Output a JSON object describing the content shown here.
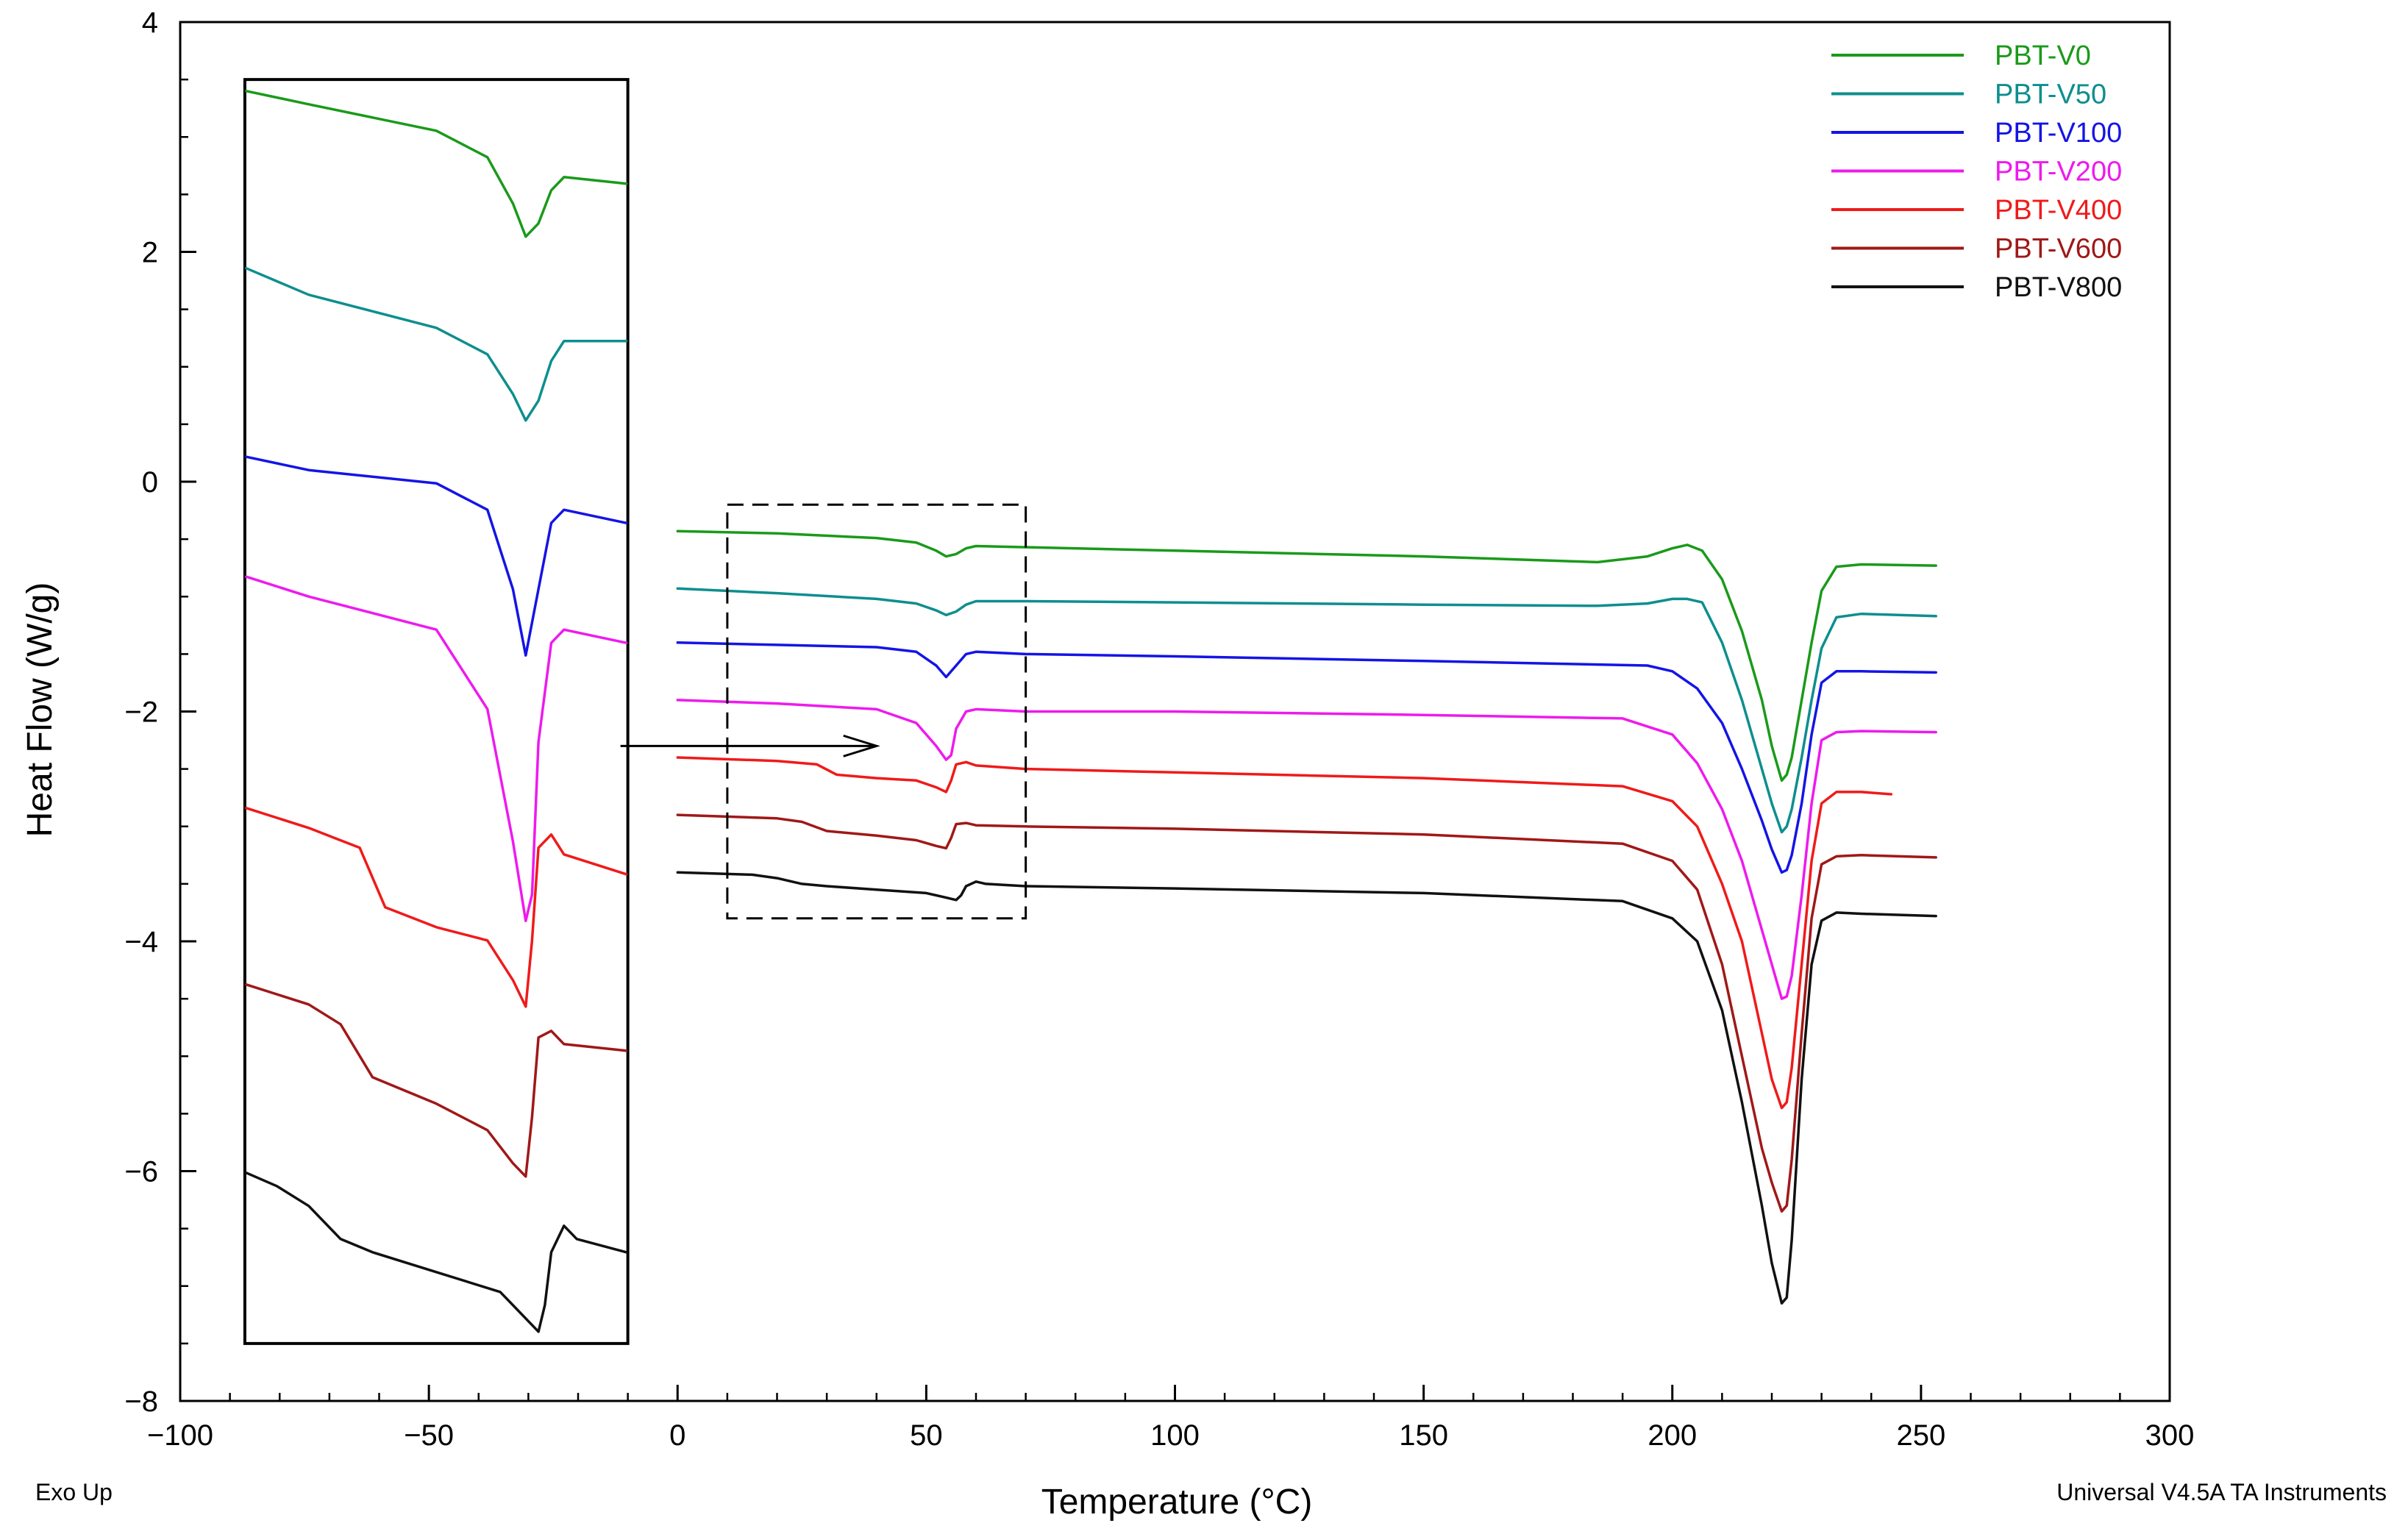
{
  "chart_data": {
    "type": "line",
    "title": "",
    "xlabel": "Temperature (°C)",
    "ylabel": "Heat Flow (W/g)",
    "xlim": [
      -100,
      300
    ],
    "ylim": [
      -8,
      4
    ],
    "x_ticks": [
      -100,
      -50,
      0,
      50,
      100,
      150,
      200,
      250,
      300
    ],
    "y_ticks": [
      -8,
      -6,
      -4,
      -2,
      0,
      2,
      4
    ],
    "legend_position": "top-right",
    "bottom_left_note": "Exo Up",
    "bottom_right_note": "Universal V4.5A TA Instruments",
    "series": [
      {
        "name": "PBT-V0",
        "color": "#1a9a1a",
        "x": [
          0,
          20,
          40,
          48,
          52,
          54,
          56,
          58,
          60,
          70,
          100,
          150,
          185,
          195,
          200,
          203,
          206,
          210,
          214,
          218,
          220,
          222,
          223,
          224,
          226,
          228,
          230,
          233,
          238,
          253
        ],
        "y": [
          -0.43,
          -0.45,
          -0.49,
          -0.53,
          -0.6,
          -0.65,
          -0.63,
          -0.58,
          -0.56,
          -0.57,
          -0.6,
          -0.65,
          -0.7,
          -0.65,
          -0.58,
          -0.55,
          -0.6,
          -0.85,
          -1.3,
          -1.9,
          -2.3,
          -2.6,
          -2.55,
          -2.4,
          -1.9,
          -1.4,
          -0.95,
          -0.74,
          -0.72,
          -0.73
        ]
      },
      {
        "name": "PBT-V50",
        "color": "#0e8e8e",
        "x": [
          0,
          20,
          40,
          48,
          52,
          54,
          56,
          58,
          60,
          70,
          100,
          150,
          185,
          195,
          200,
          203,
          206,
          210,
          214,
          218,
          220,
          222,
          223,
          224,
          226,
          228,
          230,
          233,
          238,
          253
        ],
        "y": [
          -0.93,
          -0.97,
          -1.02,
          -1.06,
          -1.12,
          -1.16,
          -1.13,
          -1.07,
          -1.04,
          -1.04,
          -1.05,
          -1.07,
          -1.08,
          -1.06,
          -1.02,
          -1.02,
          -1.05,
          -1.4,
          -1.9,
          -2.5,
          -2.8,
          -3.05,
          -3.0,
          -2.85,
          -2.4,
          -1.9,
          -1.45,
          -1.18,
          -1.15,
          -1.17
        ]
      },
      {
        "name": "PBT-V100",
        "color": "#1414e6",
        "x": [
          0,
          20,
          40,
          48,
          52,
          54,
          56,
          58,
          60,
          70,
          100,
          150,
          195,
          200,
          205,
          210,
          214,
          218,
          220,
          222,
          223,
          224,
          226,
          228,
          230,
          233,
          238,
          253
        ],
        "y": [
          -1.4,
          -1.42,
          -1.44,
          -1.48,
          -1.6,
          -1.7,
          -1.6,
          -1.5,
          -1.48,
          -1.5,
          -1.52,
          -1.56,
          -1.6,
          -1.65,
          -1.8,
          -2.1,
          -2.5,
          -2.95,
          -3.2,
          -3.4,
          -3.38,
          -3.25,
          -2.8,
          -2.2,
          -1.75,
          -1.65,
          -1.65,
          -1.66
        ]
      },
      {
        "name": "PBT-V200",
        "color": "#ee1aee",
        "x": [
          0,
          20,
          40,
          48,
          52,
          54,
          55,
          56,
          58,
          60,
          70,
          100,
          150,
          190,
          200,
          205,
          210,
          214,
          218,
          220,
          222,
          223,
          224,
          226,
          228,
          230,
          233,
          238,
          253
        ],
        "y": [
          -1.9,
          -1.93,
          -1.98,
          -2.1,
          -2.3,
          -2.42,
          -2.38,
          -2.15,
          -2.0,
          -1.98,
          -2.0,
          -2.0,
          -2.03,
          -2.06,
          -2.2,
          -2.45,
          -2.85,
          -3.3,
          -3.9,
          -4.2,
          -4.5,
          -4.48,
          -4.3,
          -3.6,
          -2.8,
          -2.25,
          -2.18,
          -2.17,
          -2.18
        ]
      },
      {
        "name": "PBT-V400",
        "color": "#f01a1a",
        "x": [
          0,
          20,
          28,
          32,
          40,
          48,
          52,
          54,
          55,
          56,
          58,
          60,
          70,
          100,
          150,
          190,
          200,
          205,
          210,
          214,
          218,
          220,
          222,
          223,
          224,
          226,
          228,
          230,
          233,
          238,
          244
        ],
        "y": [
          -2.4,
          -2.43,
          -2.46,
          -2.55,
          -2.58,
          -2.6,
          -2.66,
          -2.7,
          -2.6,
          -2.46,
          -2.44,
          -2.47,
          -2.5,
          -2.53,
          -2.58,
          -2.65,
          -2.78,
          -3.0,
          -3.5,
          -4.0,
          -4.8,
          -5.2,
          -5.45,
          -5.4,
          -5.1,
          -4.2,
          -3.3,
          -2.8,
          -2.7,
          -2.7,
          -2.72
        ]
      },
      {
        "name": "PBT-V600",
        "color": "#a01818",
        "x": [
          0,
          20,
          25,
          30,
          40,
          48,
          52,
          54,
          55,
          56,
          58,
          60,
          70,
          100,
          150,
          190,
          200,
          205,
          210,
          214,
          218,
          220,
          222,
          223,
          224,
          226,
          228,
          230,
          233,
          238,
          253
        ],
        "y": [
          -2.9,
          -2.93,
          -2.96,
          -3.04,
          -3.08,
          -3.12,
          -3.17,
          -3.19,
          -3.1,
          -2.98,
          -2.97,
          -2.99,
          -3.0,
          -3.02,
          -3.07,
          -3.15,
          -3.3,
          -3.55,
          -4.2,
          -5.0,
          -5.8,
          -6.1,
          -6.35,
          -6.3,
          -5.9,
          -4.8,
          -3.8,
          -3.33,
          -3.26,
          -3.25,
          -3.27
        ]
      },
      {
        "name": "PBT-V800",
        "color": "#111111",
        "x": [
          0,
          15,
          20,
          25,
          30,
          40,
          50,
          54,
          56,
          57,
          58,
          60,
          62,
          70,
          100,
          150,
          190,
          200,
          205,
          210,
          214,
          218,
          220,
          222,
          223,
          224,
          226,
          228,
          230,
          233,
          238,
          253
        ],
        "y": [
          -3.4,
          -3.42,
          -3.45,
          -3.5,
          -3.52,
          -3.55,
          -3.58,
          -3.62,
          -3.64,
          -3.6,
          -3.52,
          -3.48,
          -3.5,
          -3.52,
          -3.54,
          -3.58,
          -3.65,
          -3.8,
          -4.0,
          -4.6,
          -5.4,
          -6.3,
          -6.8,
          -7.15,
          -7.1,
          -6.6,
          -5.2,
          -4.2,
          -3.82,
          -3.75,
          -3.76,
          -3.78
        ]
      }
    ],
    "inset": {
      "description_note": "magnified view of the 10-70 °C region",
      "source_xlim": [
        10,
        70
      ],
      "source_ylim": [
        -3.8,
        -0.2
      ]
    }
  }
}
